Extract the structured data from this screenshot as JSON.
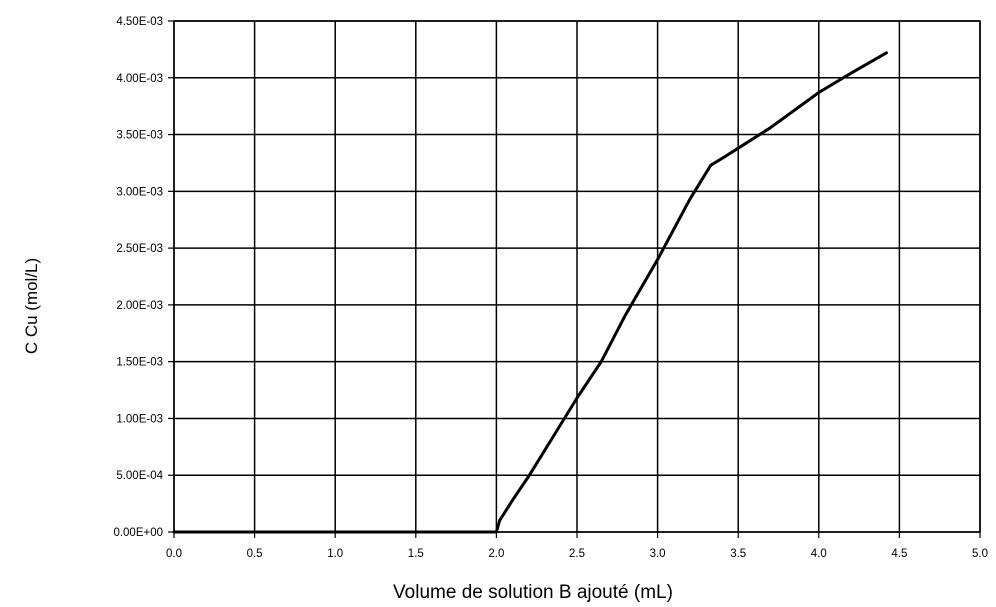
{
  "chart_data": {
    "type": "line",
    "title": "",
    "xlabel": "Volume de solution B ajouté (mL)",
    "ylabel": "C Cu (mol/L)",
    "xlim": [
      0,
      5
    ],
    "ylim": [
      0,
      0.0045
    ],
    "grid": true,
    "x_ticks": [
      0,
      0.5,
      1.0,
      1.5,
      2.0,
      2.5,
      3.0,
      3.5,
      4.0,
      4.5,
      5.0
    ],
    "x_tick_labels": [
      "0.0",
      "0.5",
      "1.0",
      "1.5",
      "2.0",
      "2.5",
      "3.0",
      "3.5",
      "4.0",
      "4.5",
      "5.0"
    ],
    "y_ticks": [
      0,
      0.0005,
      0.001,
      0.0015,
      0.002,
      0.0025,
      0.003,
      0.0035,
      0.004,
      0.0045
    ],
    "y_tick_labels": [
      "0.00E+00",
      "5.00E-04",
      "1.00E-03",
      "1.50E-03",
      "2.00E-03",
      "2.50E-03",
      "3.00E-03",
      "3.50E-03",
      "4.00E-03",
      "4.50E-03"
    ],
    "series": [
      {
        "color": "#000000",
        "x": [
          0.0,
          1.0,
          2.0,
          2.02,
          2.1,
          2.2,
          2.3,
          2.4,
          2.5,
          2.65,
          2.8,
          3.0,
          3.2,
          3.33,
          3.4,
          3.5,
          3.7,
          4.0,
          4.2,
          4.42
        ],
        "y": [
          0.0,
          0.0,
          0.0,
          0.0001,
          0.00028,
          0.00049,
          0.00072,
          0.00095,
          0.00118,
          0.0015,
          0.00191,
          0.0024,
          0.00293,
          0.00323,
          0.00329,
          0.00338,
          0.00356,
          0.00387,
          0.00404,
          0.00422
        ]
      }
    ]
  }
}
